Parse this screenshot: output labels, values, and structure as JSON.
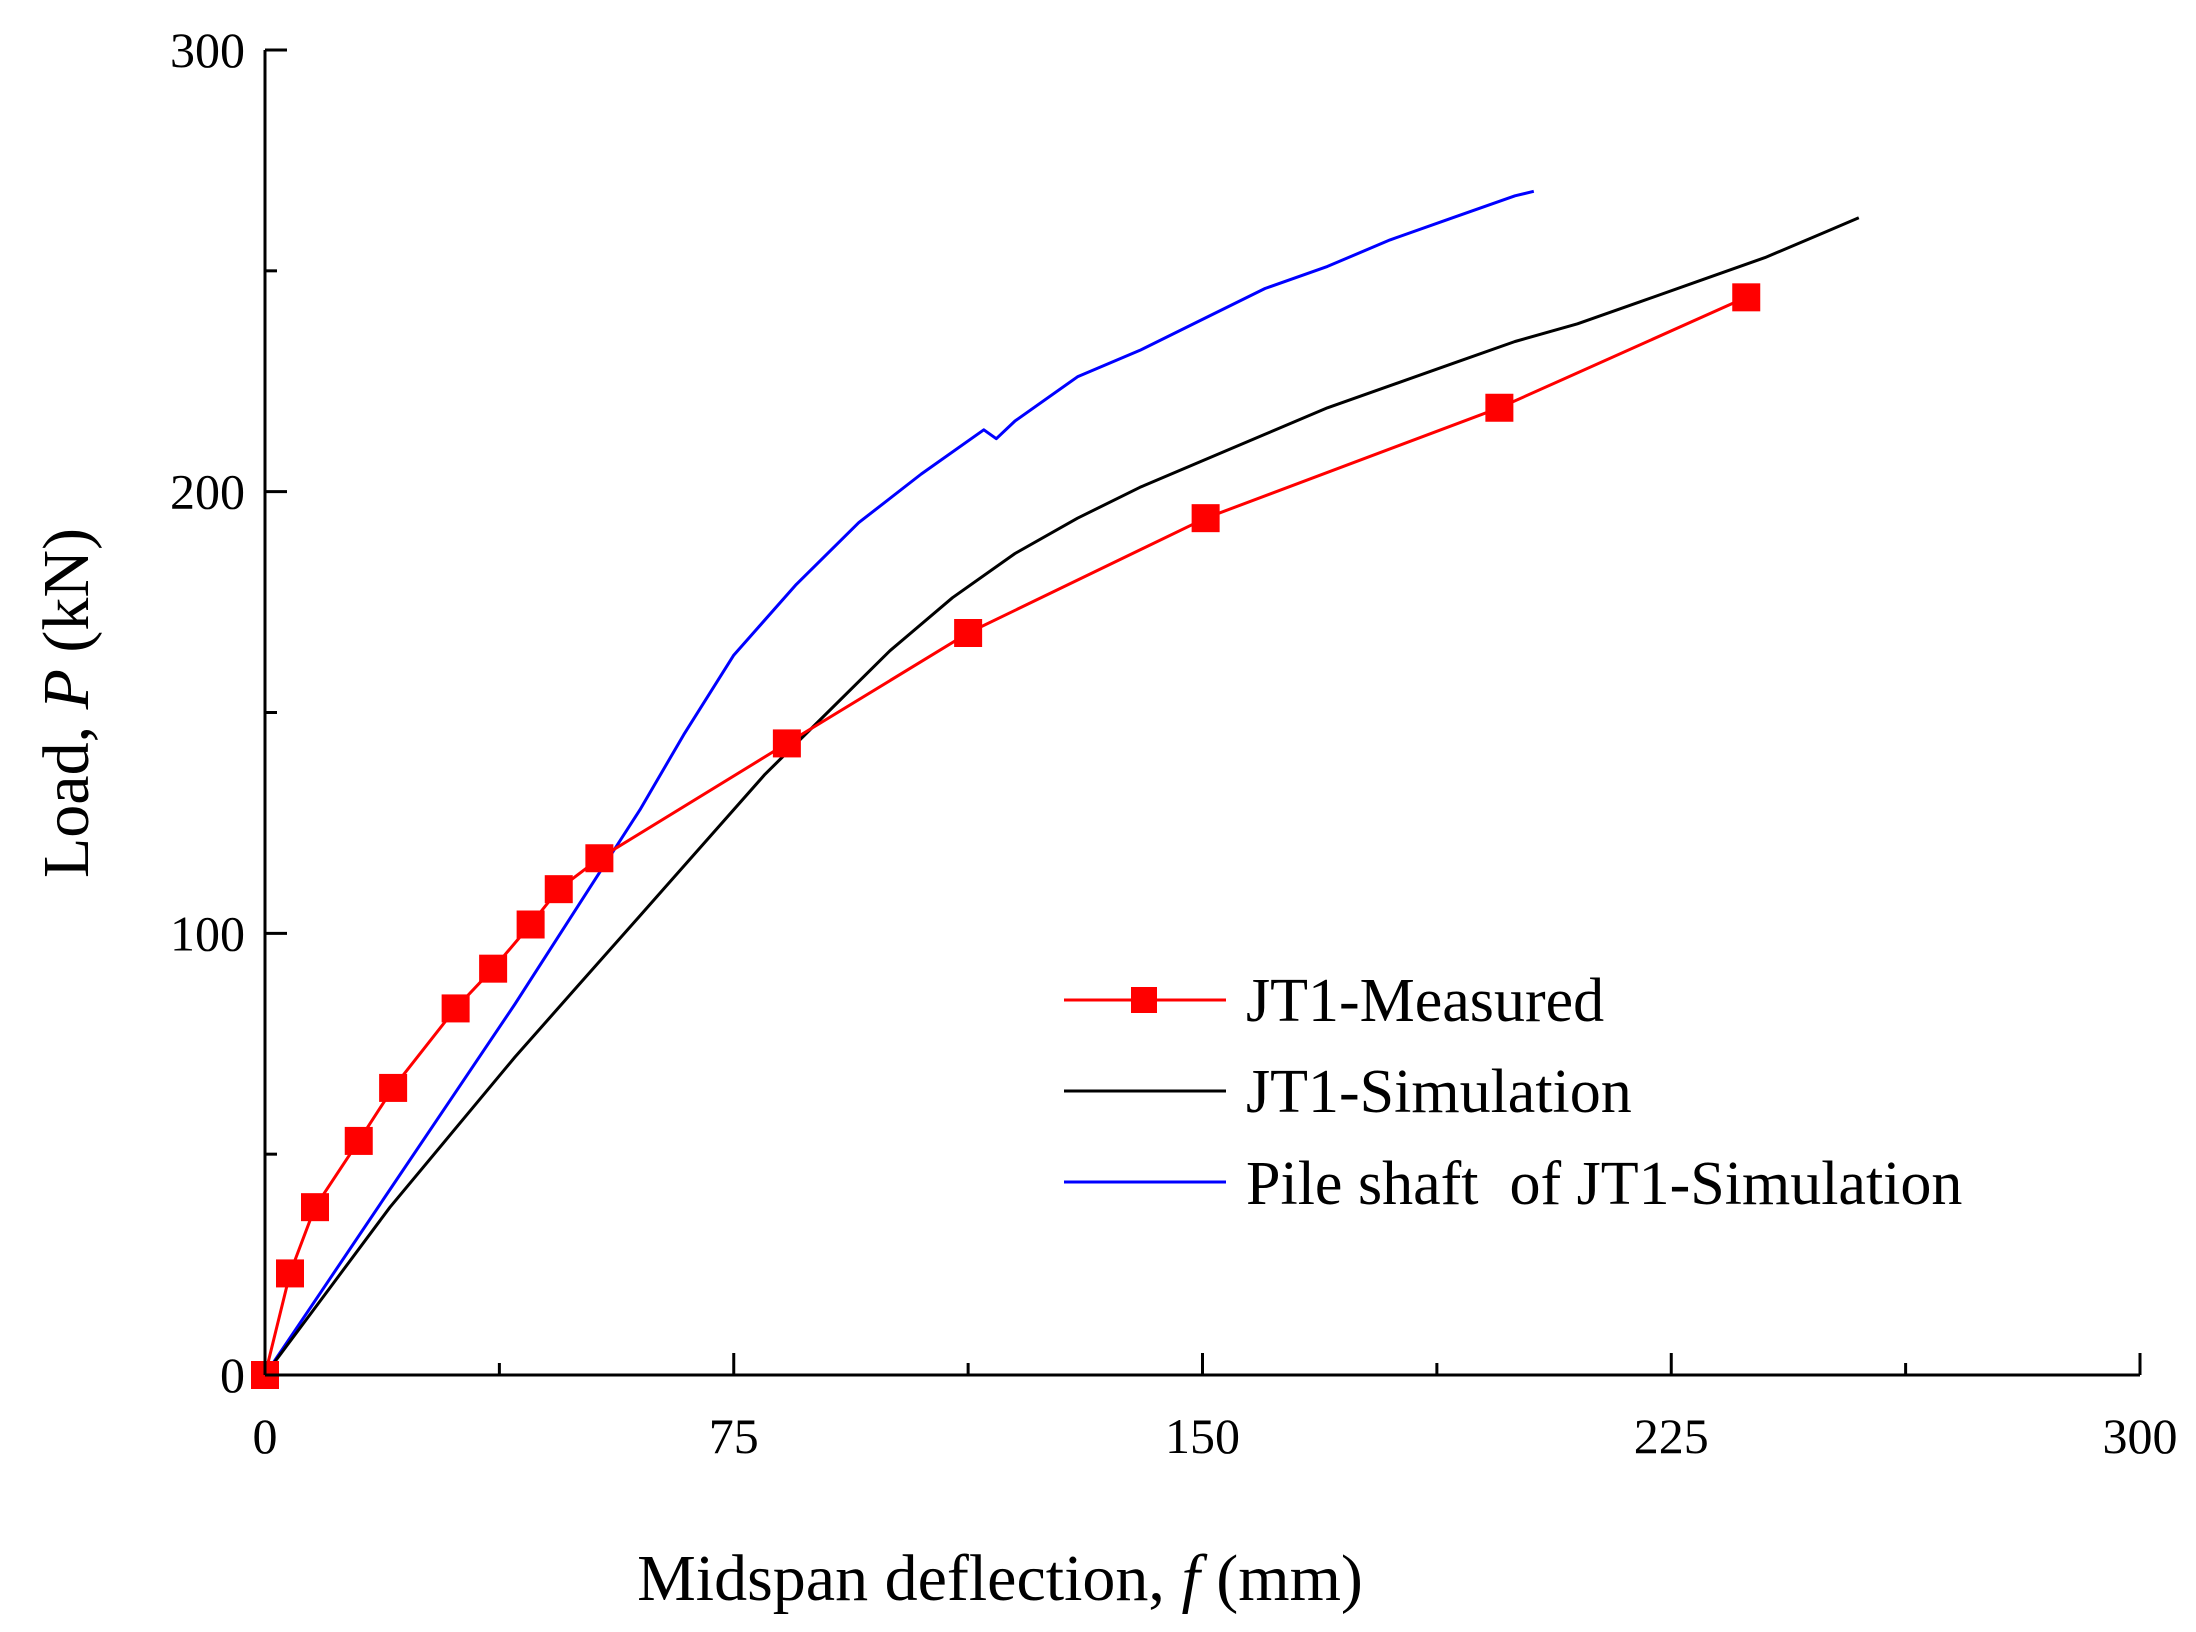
{
  "chart_data": {
    "type": "line",
    "title": "",
    "xlabel": {
      "prefix": "Midspan deflection, ",
      "symbol": "f",
      "suffix": " (mm)"
    },
    "ylabel": {
      "prefix": "Load, ",
      "symbol": "P",
      "suffix": " (kN)"
    },
    "xlim": [
      0,
      300
    ],
    "ylim": [
      0,
      300
    ],
    "x_ticks": [
      0,
      75,
      150,
      225,
      300
    ],
    "y_ticks": [
      0,
      100,
      200,
      300
    ],
    "grid": false,
    "legend_position": "lower-right",
    "series": [
      {
        "name": "JT1-Measured",
        "color": "#ff0000",
        "marker": "square",
        "x": [
          0,
          4,
          8,
          15,
          20.5,
          30.5,
          36.5,
          42.5,
          47,
          53.5,
          83.5,
          112.5,
          150.5,
          197.5,
          237
        ],
        "y": [
          0,
          23,
          38,
          53,
          65,
          83,
          92,
          102,
          110,
          117,
          143,
          168,
          194,
          219,
          244
        ]
      },
      {
        "name": "JT1-Simulation",
        "color": "#000000",
        "marker": "none",
        "x": [
          0,
          10,
          20,
          30,
          40,
          50,
          60,
          70,
          80,
          90,
          100,
          110,
          120,
          130,
          140,
          150,
          160,
          170,
          180,
          190,
          200,
          210,
          220,
          230,
          240,
          250,
          255
        ],
        "y": [
          0,
          19,
          38,
          55,
          72,
          88,
          104,
          120,
          136,
          150,
          164,
          176,
          186,
          194,
          201,
          207,
          213,
          219,
          224,
          229,
          234,
          238,
          243,
          248,
          253,
          259,
          262
        ]
      },
      {
        "name": "Pile shaft  of JT1-Simulation",
        "color": "#0000ff",
        "marker": "none",
        "x": [
          0,
          10,
          20,
          30,
          40,
          50,
          60,
          67,
          75,
          85,
          95,
          105,
          115,
          117,
          120,
          130,
          140,
          150,
          160,
          170,
          180,
          190,
          200,
          203
        ],
        "y": [
          0,
          21,
          42,
          63,
          84,
          106,
          128,
          145,
          163,
          179,
          193,
          204,
          214,
          212,
          216,
          226,
          232,
          239,
          246,
          251,
          257,
          262,
          267,
          268
        ]
      }
    ]
  }
}
